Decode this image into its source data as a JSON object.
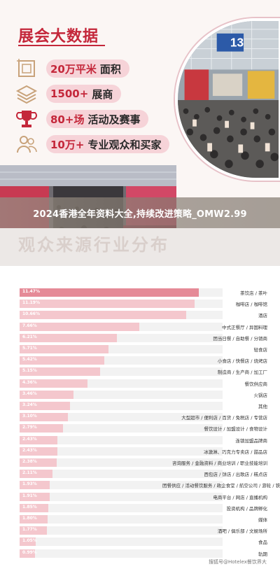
{
  "panel": {
    "title": "展会大数据",
    "stats": [
      {
        "icon": "area-frame-icon",
        "value": "20万平米",
        "label": "面积"
      },
      {
        "icon": "layers-icon",
        "value": "1500+",
        "label": "展商"
      },
      {
        "icon": "trophy-icon",
        "value": "80+场",
        "label": "活动及赛事"
      },
      {
        "icon": "people-icon",
        "value": "10万+",
        "label": "专业观众和买家"
      }
    ],
    "hall_sign": "13"
  },
  "banner": {
    "title": "2024香港全年资料大全,持续改进策略_OMW2.99"
  },
  "chart_data": {
    "type": "bar",
    "orientation": "horizontal",
    "categories": [
      "茶饮店 / 茶叶",
      "咖啡店 / 咖啡馆",
      "酒店",
      "中式正餐厅 / 异国料理",
      "团当日餐 / 自助餐 / 分销商",
      "轻食店",
      "小食店 / 快餐店 / 烧烤店",
      "制造商 / 生产商 / 加工厂",
      "餐饮供应商",
      "火锅店",
      "其他",
      "大型超市 / 便利店 / 百货 / 免税店 / 专营店",
      "餐饮设计 / 加盟设计 / 食物设计",
      "连锁加盟品牌商",
      "冰激淋、巧克力专卖店 / 甜品店",
      "咨询服务 / 金融资料 / 商业培训 / 职业技能培训",
      "西包店 / 饼店 / 出歌店 / 糕点店",
      "团餐供应 / 活动餐饮服务 / 政企食堂 / 航空公司 / 游轮 / 铁路",
      "电商平台 / 网店 / 直播机构",
      "投资机构 / 品牌孵化",
      "媒体",
      "酒吧 / 俱乐部 / 文娱场所",
      "食品",
      "轨期"
    ],
    "values": [
      11.47,
      11.19,
      10.66,
      7.66,
      6.21,
      5.71,
      5.42,
      5.15,
      4.36,
      3.46,
      3.24,
      3.1,
      2.79,
      2.43,
      2.43,
      2.38,
      2.11,
      1.93,
      1.91,
      1.85,
      1.8,
      1.77,
      1.05,
      0.99
    ],
    "value_labels": [
      "11.47%",
      "11.19%",
      "10.66%",
      "7.66%",
      "6.21%",
      "5.71%",
      "5.42%",
      "5.15%",
      "4.36%",
      "3.46%",
      "3.24%",
      "3.10%",
      "2.79%",
      "2.43%",
      "2.43%",
      "2.38%",
      "2.11%",
      "1.93%",
      "1.91%",
      "1.85%",
      "1.80%",
      "1.77%",
      "1.05%",
      "0.99%"
    ],
    "xlim": [
      0,
      13
    ],
    "ghost_heading": "观众来源行业分布",
    "bar_color": "#f4c7cd",
    "highlight_color": "#e58a97",
    "track_color": "#f2f2f2"
  },
  "watermark": "搜狐号@Hotelex餐饮界大",
  "colors": {
    "accent": "#c4273a",
    "pill": "#f6d3d8",
    "panel_bg": "#fbf6f4"
  }
}
